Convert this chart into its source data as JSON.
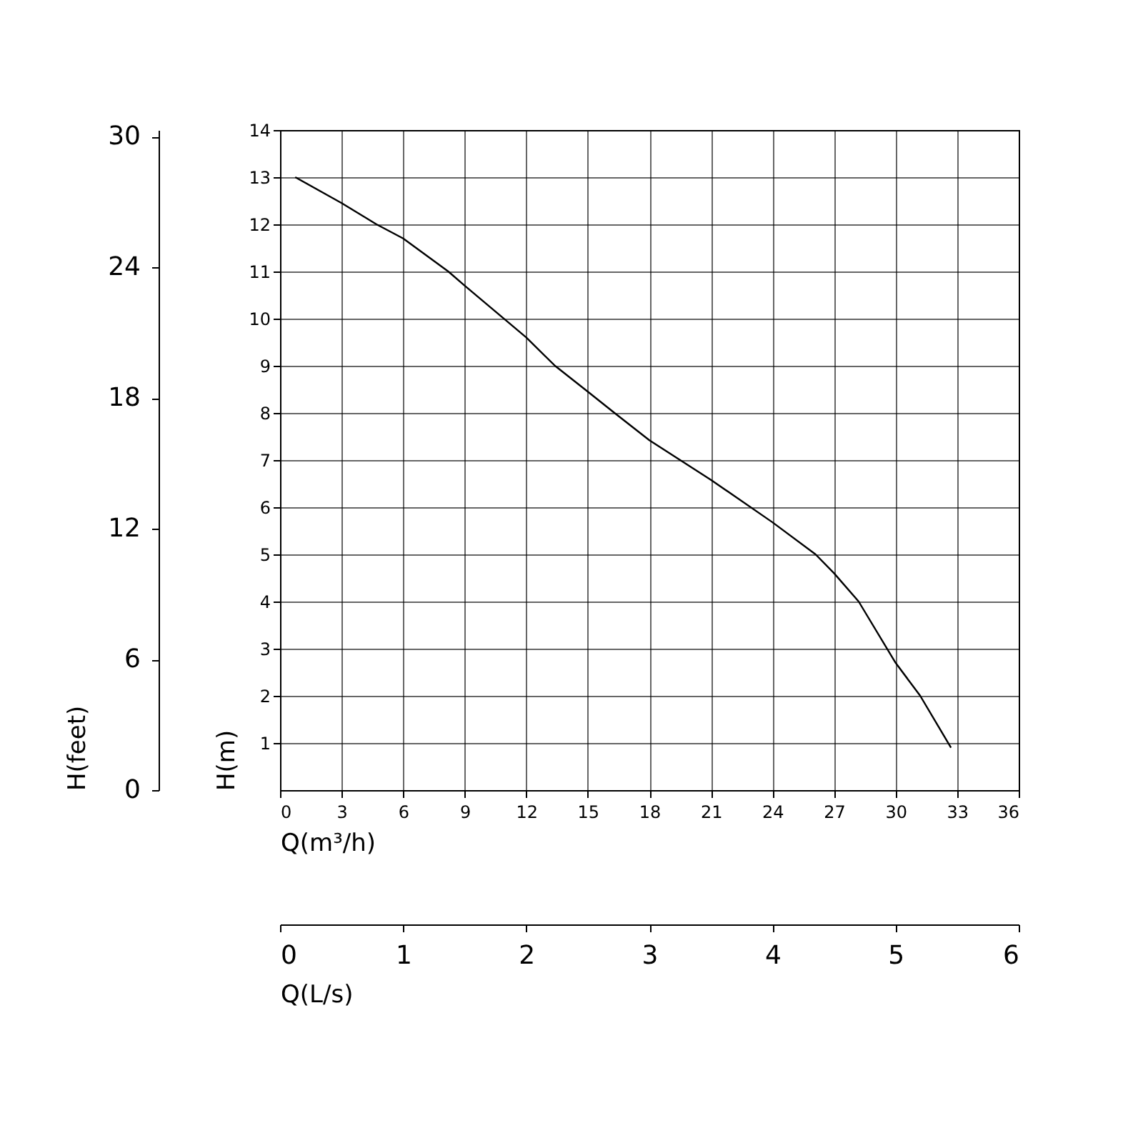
{
  "chart_data": {
    "type": "line",
    "xlabel": "Q(m³/h)",
    "ylabel": "H(m)",
    "y2label": "H(feet)",
    "x2label": "Q(L/s)",
    "x": [
      0.74,
      3,
      4.7,
      6,
      8.2,
      9,
      12,
      13.4,
      15,
      16.3,
      18,
      21,
      24,
      26.1,
      27,
      28.2,
      30,
      31.2,
      32.7
    ],
    "series": [
      {
        "color": "#000000",
        "values": [
          13,
          12.45,
          12,
          11.7,
          11,
          10.7,
          9.6,
          9,
          8.45,
          8,
          7.42,
          6.58,
          5.68,
          5,
          4.6,
          4,
          2.7,
          2,
          0.9
        ]
      }
    ],
    "xlim": [
      0,
      36
    ],
    "xticks": [
      0,
      3,
      6,
      9,
      12,
      15,
      18,
      21,
      24,
      27,
      30,
      33,
      36
    ],
    "ylim": [
      0,
      14
    ],
    "yticks": [
      1,
      2,
      3,
      4,
      5,
      6,
      7,
      8,
      9,
      10,
      11,
      12,
      13,
      14
    ],
    "y2lim": [
      0,
      30.3
    ],
    "y2ticks": [
      0,
      6,
      12,
      18,
      24,
      30
    ],
    "x2lim": [
      0,
      6
    ],
    "x2ticks": [
      0,
      1,
      2,
      3,
      4,
      5,
      6
    ],
    "grid": true
  }
}
